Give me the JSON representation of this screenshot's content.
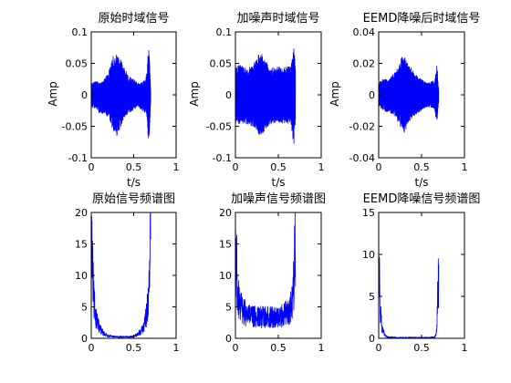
{
  "figure": {
    "background": "#ffffff",
    "line_color": "#0000ff",
    "axes_color": "#000000"
  },
  "chart_data": [
    {
      "id": "p1",
      "type": "line",
      "title": "原始时域信号",
      "xlabel": "t/s",
      "ylabel": "Amp",
      "xlim": [
        0,
        1
      ],
      "ylim": [
        -0.1,
        0.1
      ],
      "xticks": [
        0,
        0.5,
        1
      ],
      "xticklabels": [
        "0",
        "0.5",
        "1"
      ],
      "yticks": [
        -0.1,
        -0.05,
        0,
        0.05,
        0.1
      ],
      "yticklabels": [
        "-0.1",
        "-0.05",
        "0",
        "0.05",
        "0.1"
      ],
      "grid": false,
      "envelope": {
        "t": [
          0.0,
          0.05,
          0.1,
          0.15,
          0.2,
          0.25,
          0.28,
          0.3,
          0.35,
          0.4,
          0.45,
          0.5,
          0.55,
          0.6,
          0.65,
          0.68,
          0.7
        ],
        "upper": [
          0.02,
          0.022,
          0.02,
          0.025,
          0.035,
          0.06,
          0.065,
          0.07,
          0.055,
          0.04,
          0.03,
          0.025,
          0.02,
          0.02,
          0.03,
          0.085,
          0.01
        ],
        "lower": [
          -0.02,
          -0.022,
          -0.03,
          -0.03,
          -0.035,
          -0.055,
          -0.06,
          -0.065,
          -0.05,
          -0.035,
          -0.03,
          -0.025,
          -0.02,
          -0.025,
          -0.03,
          -0.085,
          -0.01
        ]
      }
    },
    {
      "id": "p2",
      "type": "line",
      "title": "加噪声时域信号",
      "xlabel": "t/s",
      "ylabel": "Amp",
      "xlim": [
        0,
        1
      ],
      "ylim": [
        -0.1,
        0.1
      ],
      "xticks": [
        0,
        0.5,
        1
      ],
      "xticklabels": [
        "0",
        "0.5",
        "1"
      ],
      "yticks": [
        -0.1,
        -0.05,
        0,
        0.05,
        0.1
      ],
      "yticklabels": [
        "-0.1",
        "-0.05",
        "0",
        "0.05",
        "0.1"
      ],
      "grid": false,
      "envelope": {
        "t": [
          0.0,
          0.05,
          0.1,
          0.15,
          0.2,
          0.25,
          0.28,
          0.3,
          0.35,
          0.4,
          0.45,
          0.5,
          0.55,
          0.6,
          0.65,
          0.68,
          0.7
        ],
        "upper": [
          0.045,
          0.048,
          0.045,
          0.045,
          0.048,
          0.06,
          0.065,
          0.068,
          0.055,
          0.048,
          0.045,
          0.045,
          0.045,
          0.045,
          0.048,
          0.085,
          0.04
        ],
        "lower": [
          -0.045,
          -0.048,
          -0.045,
          -0.048,
          -0.05,
          -0.06,
          -0.065,
          -0.068,
          -0.055,
          -0.048,
          -0.045,
          -0.045,
          -0.045,
          -0.045,
          -0.048,
          -0.085,
          -0.04
        ]
      }
    },
    {
      "id": "p3",
      "type": "line",
      "title": "EEMD降噪后时域信号",
      "xlabel": "t/s",
      "ylabel": "Amp",
      "xlim": [
        0,
        1
      ],
      "ylim": [
        -0.04,
        0.04
      ],
      "xticks": [
        0,
        0.5,
        1
      ],
      "xticklabels": [
        "0",
        "0.5",
        "1"
      ],
      "yticks": [
        -0.04,
        -0.02,
        0,
        0.02,
        0.04
      ],
      "yticklabels": [
        "-0.04",
        "-0.02",
        "0",
        "0.02",
        "0.04"
      ],
      "grid": false,
      "envelope": {
        "t": [
          0.0,
          0.05,
          0.1,
          0.15,
          0.2,
          0.25,
          0.28,
          0.3,
          0.35,
          0.4,
          0.45,
          0.5,
          0.55,
          0.6,
          0.65,
          0.68,
          0.7
        ],
        "upper": [
          0.008,
          0.01,
          0.01,
          0.012,
          0.015,
          0.022,
          0.025,
          0.026,
          0.02,
          0.015,
          0.012,
          0.01,
          0.008,
          0.008,
          0.01,
          0.02,
          0.004
        ],
        "lower": [
          -0.008,
          -0.01,
          -0.012,
          -0.012,
          -0.015,
          -0.02,
          -0.022,
          -0.024,
          -0.018,
          -0.014,
          -0.012,
          -0.01,
          -0.008,
          -0.008,
          -0.01,
          -0.018,
          -0.004
        ]
      }
    },
    {
      "id": "p4",
      "type": "bar",
      "title": "原始信号频谱图",
      "xlabel": "",
      "ylabel": "",
      "xlim": [
        0,
        1
      ],
      "ylim": [
        0,
        20
      ],
      "xticks": [
        0,
        0.5,
        1
      ],
      "xticklabels": [
        "0",
        "0.5",
        "1"
      ],
      "yticks": [
        0,
        5,
        10,
        15,
        20
      ],
      "yticklabels": [
        "0",
        "5",
        "10",
        "15",
        "20"
      ],
      "grid": false,
      "spectrum": {
        "f": [
          0.0,
          0.01,
          0.02,
          0.03,
          0.05,
          0.08,
          0.1,
          0.15,
          0.2,
          0.3,
          0.4,
          0.5,
          0.55,
          0.58,
          0.6,
          0.63,
          0.65,
          0.67,
          0.68,
          0.69,
          0.7
        ],
        "amp": [
          20,
          18,
          12,
          8,
          5,
          3,
          2,
          1,
          0.5,
          0.3,
          0.3,
          0.4,
          0.8,
          1.5,
          2,
          3,
          5,
          8,
          12,
          18,
          20
        ]
      }
    },
    {
      "id": "p5",
      "type": "bar",
      "title": "加噪声信号频谱图",
      "xlabel": "",
      "ylabel": "",
      "xlim": [
        0,
        1
      ],
      "ylim": [
        0,
        20
      ],
      "xticks": [
        0,
        0.5,
        1
      ],
      "xticklabels": [
        "0",
        "0.5",
        "1"
      ],
      "yticks": [
        0,
        5,
        10,
        15,
        20
      ],
      "yticklabels": [
        "0",
        "5",
        "10",
        "15",
        "20"
      ],
      "grid": false,
      "spectrum": {
        "f": [
          0.0,
          0.01,
          0.02,
          0.03,
          0.05,
          0.08,
          0.1,
          0.15,
          0.2,
          0.3,
          0.4,
          0.5,
          0.55,
          0.6,
          0.63,
          0.65,
          0.67,
          0.68,
          0.69,
          0.7
        ],
        "amp": [
          20,
          17,
          12,
          9,
          7,
          6,
          5.5,
          5,
          4.5,
          4.5,
          4.5,
          4.5,
          5,
          5.5,
          6,
          7,
          9,
          12,
          18,
          19
        ]
      }
    },
    {
      "id": "p6",
      "type": "bar",
      "title": "EEMD降噪信号频谱图",
      "xlabel": "",
      "ylabel": "",
      "xlim": [
        0,
        1
      ],
      "ylim": [
        0,
        15
      ],
      "xticks": [
        0,
        0.5,
        1
      ],
      "xticklabels": [
        "0",
        "0.5",
        "1"
      ],
      "yticks": [
        0,
        5,
        10,
        15
      ],
      "yticklabels": [
        "0",
        "5",
        "10",
        "15"
      ],
      "grid": false,
      "spectrum": {
        "f": [
          0.0,
          0.01,
          0.02,
          0.03,
          0.04,
          0.06,
          0.08,
          0.1,
          0.2,
          0.3,
          0.4,
          0.5,
          0.6,
          0.65,
          0.67,
          0.68,
          0.69,
          0.7
        ],
        "amp": [
          11,
          9,
          5,
          3,
          1.5,
          0.8,
          0.4,
          0.2,
          0.1,
          0.1,
          0.1,
          0.1,
          0.1,
          0.2,
          0.6,
          2,
          8,
          10
        ]
      }
    }
  ]
}
